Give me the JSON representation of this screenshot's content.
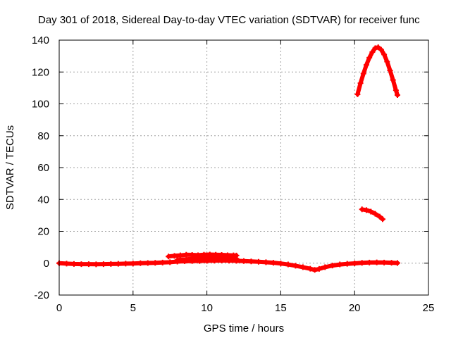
{
  "chart_data": {
    "type": "scatter",
    "title": "Day 301 of 2018, Sidereal Day-to-day VTEC variation (SDTVAR) for receiver func",
    "xlabel": "GPS time / hours",
    "ylabel": "SDTVAR / TECUs",
    "xlim": [
      0,
      25
    ],
    "ylim": [
      -20,
      140
    ],
    "xticks": [
      0,
      5,
      10,
      15,
      20,
      25
    ],
    "yticks": [
      -20,
      0,
      20,
      40,
      60,
      80,
      100,
      120,
      140
    ],
    "grid": true,
    "marker_color": "#ff0000",
    "series": [
      {
        "points": [
          [
            0.0,
            0.0
          ],
          [
            0.5,
            -0.3
          ],
          [
            1.0,
            -0.5
          ],
          [
            1.5,
            -0.6
          ],
          [
            2.0,
            -0.6
          ],
          [
            2.5,
            -0.7
          ],
          [
            3.0,
            -0.6
          ],
          [
            3.5,
            -0.5
          ],
          [
            4.0,
            -0.4
          ],
          [
            4.5,
            -0.3
          ],
          [
            5.0,
            -0.2
          ],
          [
            5.5,
            0.0
          ],
          [
            6.0,
            0.1
          ],
          [
            6.5,
            0.2
          ],
          [
            7.0,
            0.4
          ],
          [
            7.5,
            0.6
          ],
          [
            8.0,
            1.0
          ],
          [
            8.5,
            1.2
          ],
          [
            9.0,
            1.3
          ],
          [
            9.5,
            1.4
          ],
          [
            10.0,
            1.5
          ],
          [
            10.5,
            1.6
          ],
          [
            11.0,
            1.7
          ],
          [
            11.5,
            1.6
          ],
          [
            12.0,
            1.5
          ],
          [
            12.5,
            1.3
          ],
          [
            13.0,
            1.1
          ],
          [
            13.5,
            0.9
          ],
          [
            14.0,
            0.6
          ],
          [
            14.5,
            0.3
          ],
          [
            15.0,
            -0.2
          ],
          [
            15.5,
            -0.8
          ],
          [
            16.0,
            -1.6
          ],
          [
            16.5,
            -2.5
          ],
          [
            17.0,
            -3.5
          ],
          [
            17.3,
            -4.2
          ],
          [
            17.6,
            -3.6
          ],
          [
            18.0,
            -2.5
          ],
          [
            18.5,
            -1.5
          ],
          [
            19.0,
            -0.8
          ],
          [
            19.5,
            -0.4
          ],
          [
            20.0,
            -0.1
          ],
          [
            20.5,
            0.2
          ],
          [
            21.0,
            0.4
          ],
          [
            21.5,
            0.5
          ],
          [
            22.0,
            0.4
          ],
          [
            22.5,
            0.3
          ],
          [
            22.9,
            0.1
          ]
        ]
      },
      {
        "points": [
          [
            7.4,
            4.2
          ],
          [
            7.8,
            4.6
          ],
          [
            8.2,
            4.9
          ],
          [
            8.6,
            5.3
          ],
          [
            9.0,
            5.2
          ],
          [
            9.4,
            5.0
          ],
          [
            9.8,
            5.3
          ],
          [
            10.2,
            5.4
          ],
          [
            10.6,
            5.3
          ],
          [
            11.0,
            5.2
          ],
          [
            11.4,
            5.0
          ],
          [
            11.8,
            4.9
          ],
          [
            12.0,
            4.8
          ],
          [
            8.0,
            2.0
          ],
          [
            9.0,
            2.6
          ],
          [
            10.0,
            3.0
          ],
          [
            11.0,
            3.1
          ],
          [
            12.0,
            2.8
          ]
        ]
      },
      {
        "points": [
          [
            20.2,
            106.0
          ],
          [
            20.4,
            113.0
          ],
          [
            20.6,
            119.0
          ],
          [
            20.8,
            124.5
          ],
          [
            21.0,
            129.0
          ],
          [
            21.2,
            132.5
          ],
          [
            21.4,
            135.0
          ],
          [
            21.6,
            135.5
          ],
          [
            21.8,
            134.0
          ],
          [
            22.0,
            131.0
          ],
          [
            22.2,
            126.5
          ],
          [
            22.4,
            121.0
          ],
          [
            22.6,
            115.0
          ],
          [
            22.8,
            108.5
          ],
          [
            22.9,
            105.5
          ]
        ]
      },
      {
        "points": [
          [
            20.5,
            33.8
          ],
          [
            20.8,
            33.3
          ],
          [
            21.1,
            32.4
          ],
          [
            21.4,
            31.0
          ],
          [
            21.7,
            29.2
          ],
          [
            21.9,
            27.6
          ]
        ]
      }
    ]
  }
}
